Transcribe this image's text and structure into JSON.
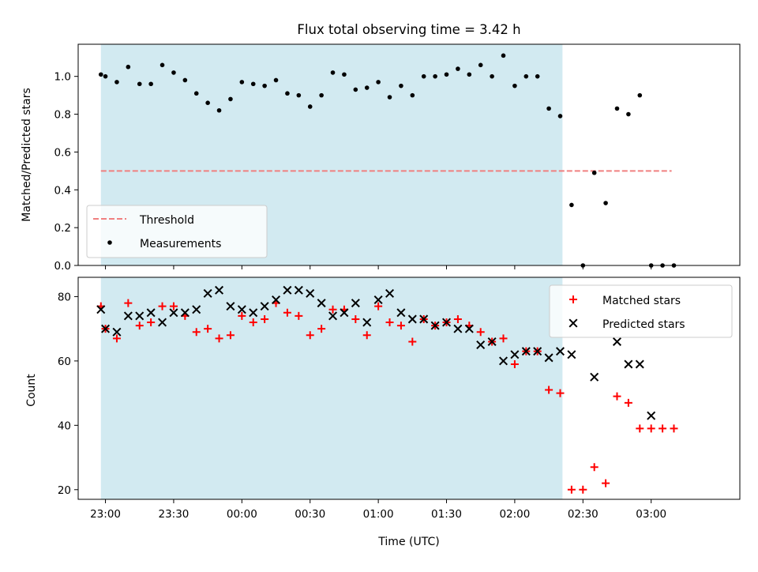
{
  "colors": {
    "shade": "#add8e6",
    "threshold": "#f08080",
    "measurement": "#000000",
    "matched": "#ff0000",
    "predicted": "#000000"
  },
  "chart_data": [
    {
      "type": "scatter",
      "title": "Flux total observing time = 3.42 h",
      "ylabel": "Matched/Predicted stars",
      "xlim": [
        "22:48",
        "03:39"
      ],
      "ylim": [
        0,
        1.17
      ],
      "yticks": [
        "0.0",
        "0.2",
        "0.4",
        "0.6",
        "0.8",
        "1.0"
      ],
      "shaded_span": [
        "22:58",
        "02:21"
      ],
      "legend": {
        "position": "lower-left",
        "entries": [
          "Threshold",
          "Measurements"
        ]
      },
      "series": [
        {
          "name": "Threshold",
          "kind": "dashed-line",
          "x": [
            "22:58",
            "03:09"
          ],
          "y": [
            0.5,
            0.5
          ]
        },
        {
          "name": "Measurements",
          "kind": "dot",
          "x": [
            "22:58",
            "23:00",
            "23:05",
            "23:10",
            "23:15",
            "23:20",
            "23:25",
            "23:30",
            "23:35",
            "23:40",
            "23:45",
            "23:50",
            "23:55",
            "00:00",
            "00:05",
            "00:10",
            "00:15",
            "00:20",
            "00:25",
            "00:30",
            "00:35",
            "00:40",
            "00:45",
            "00:50",
            "00:55",
            "01:00",
            "01:05",
            "01:10",
            "01:15",
            "01:20",
            "01:25",
            "01:30",
            "01:35",
            "01:40",
            "01:45",
            "01:50",
            "01:55",
            "02:00",
            "02:05",
            "02:10",
            "02:15",
            "02:20",
            "02:25",
            "02:30",
            "02:35",
            "02:40",
            "02:45",
            "02:50",
            "02:55",
            "03:00",
            "03:05",
            "03:10"
          ],
          "y": [
            1.01,
            1.0,
            0.97,
            1.05,
            0.96,
            0.96,
            1.06,
            1.02,
            0.98,
            0.91,
            0.86,
            0.82,
            0.88,
            0.97,
            0.96,
            0.95,
            0.98,
            0.91,
            0.9,
            0.84,
            0.9,
            1.02,
            1.01,
            0.93,
            0.94,
            0.97,
            0.89,
            0.95,
            0.9,
            1.0,
            1.0,
            1.01,
            1.04,
            1.01,
            1.06,
            1.0,
            1.11,
            0.95,
            1.0,
            1.0,
            0.83,
            0.79,
            0.32,
            0.0,
            0.49,
            0.33,
            0.83,
            0.8,
            0.9,
            0.0,
            0.0,
            0.0
          ]
        }
      ]
    },
    {
      "type": "scatter",
      "xlabel": "Time (UTC)",
      "ylabel": "Count",
      "xlim": [
        "22:48",
        "03:39"
      ],
      "ylim": [
        17,
        86
      ],
      "yticks": [
        "20",
        "40",
        "60",
        "80"
      ],
      "xticks": [
        "23:00",
        "23:30",
        "00:00",
        "00:30",
        "01:00",
        "01:30",
        "02:00",
        "02:30",
        "03:00"
      ],
      "shaded_span": [
        "22:58",
        "02:21"
      ],
      "legend": {
        "position": "upper-right",
        "entries": [
          "Matched stars",
          "Predicted stars"
        ]
      },
      "series": [
        {
          "name": "Matched stars",
          "kind": "plus",
          "x": [
            "22:58",
            "23:00",
            "23:05",
            "23:10",
            "23:15",
            "23:20",
            "23:25",
            "23:30",
            "23:35",
            "23:40",
            "23:45",
            "23:50",
            "23:55",
            "00:00",
            "00:05",
            "00:10",
            "00:15",
            "00:20",
            "00:25",
            "00:30",
            "00:35",
            "00:40",
            "00:45",
            "00:50",
            "00:55",
            "01:00",
            "01:05",
            "01:10",
            "01:15",
            "01:20",
            "01:25",
            "01:30",
            "01:35",
            "01:40",
            "01:45",
            "01:50",
            "01:55",
            "02:00",
            "02:05",
            "02:10",
            "02:15",
            "02:20",
            "02:25",
            "02:30",
            "02:35",
            "02:40",
            "02:45",
            "02:50",
            "02:55",
            "03:00",
            "03:05",
            "03:10"
          ],
          "y": [
            77,
            70,
            67,
            78,
            71,
            72,
            77,
            77,
            74,
            69,
            70,
            67,
            68,
            74,
            72,
            73,
            78,
            75,
            74,
            68,
            70,
            76,
            76,
            73,
            68,
            77,
            72,
            71,
            66,
            73,
            71,
            72,
            73,
            71,
            69,
            66,
            67,
            59,
            63,
            63,
            51,
            50,
            20,
            20,
            27,
            22,
            49,
            47,
            39,
            39,
            39,
            39
          ]
        },
        {
          "name": "Predicted stars",
          "kind": "x",
          "x": [
            "22:58",
            "23:00",
            "23:05",
            "23:10",
            "23:15",
            "23:20",
            "23:25",
            "23:30",
            "23:35",
            "23:40",
            "23:45",
            "23:50",
            "23:55",
            "00:00",
            "00:05",
            "00:10",
            "00:15",
            "00:20",
            "00:25",
            "00:30",
            "00:35",
            "00:40",
            "00:45",
            "00:50",
            "00:55",
            "01:00",
            "01:05",
            "01:10",
            "01:15",
            "01:20",
            "01:25",
            "01:30",
            "01:35",
            "01:40",
            "01:45",
            "01:50",
            "01:55",
            "02:00",
            "02:05",
            "02:10",
            "02:15",
            "02:20",
            "02:25",
            "02:35",
            "02:45",
            "02:50",
            "02:55",
            "03:00"
          ],
          "y": [
            76,
            70,
            69,
            74,
            74,
            75,
            72,
            75,
            75,
            76,
            81,
            82,
            77,
            76,
            75,
            77,
            79,
            82,
            82,
            81,
            78,
            74,
            75,
            78,
            72,
            79,
            81,
            75,
            73,
            73,
            71,
            72,
            70,
            70,
            65,
            66,
            60,
            62,
            63,
            63,
            61,
            63,
            62,
            55,
            66,
            59,
            59,
            43
          ]
        }
      ]
    }
  ]
}
